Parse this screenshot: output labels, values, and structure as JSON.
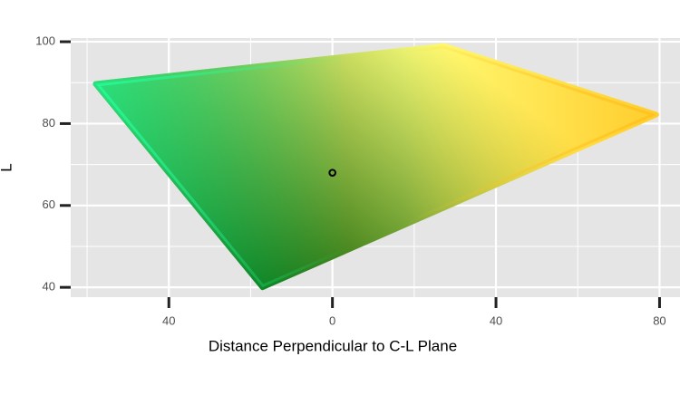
{
  "chart_data": {
    "type": "polygon",
    "x_label": "Distance Perpendicular to C-L Plane",
    "y_label": "L",
    "xlim": [
      -64,
      85
    ],
    "ylim": [
      37.6,
      100.9
    ],
    "xticks": [
      {
        "value": -40,
        "label": "40"
      },
      0,
      40,
      80
    ],
    "yticks": [
      40,
      60,
      80,
      100
    ],
    "xminor": [
      -60,
      -20,
      20,
      60
    ],
    "yminor": [
      50,
      70,
      90
    ],
    "grid": true,
    "series": [
      {
        "name": "gamut",
        "x": [
          -57.9,
          27.3,
          79.2,
          -17.1
        ],
        "values": [
          89.7,
          99.0,
          82.2,
          40
        ],
        "colors": [
          "#25ff9c",
          "#ffff7a",
          "#ffc01a",
          "#0a5e00"
        ]
      },
      {
        "name": "point",
        "x": [
          0
        ],
        "values": [
          68
        ],
        "color": "#000000"
      }
    ]
  }
}
